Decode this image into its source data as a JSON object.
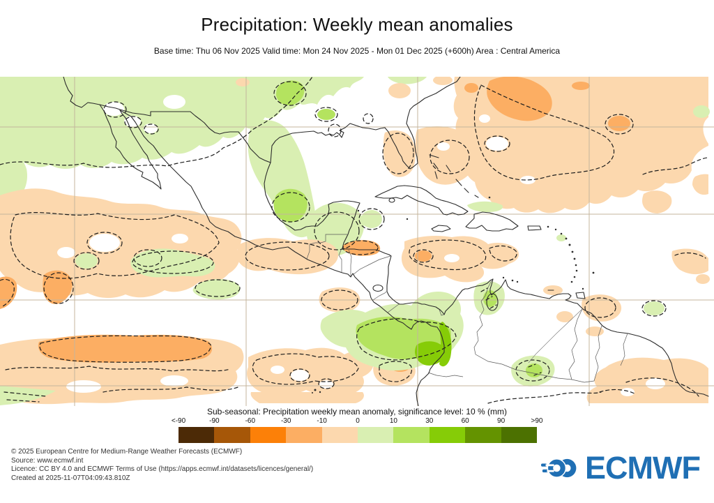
{
  "header": {
    "title": "Precipitation: Weekly mean anomalies",
    "subtitle": "Base time: Thu 06 Nov 2025 Valid time: Mon 24 Nov 2025 - Mon 01 Dec 2025 (+600h) Area : Central America"
  },
  "map": {
    "area": "Central America",
    "gridline_color": "#c4b69c",
    "coastline_color": "#2b2b2b",
    "shading_colors": {
      "anom_-30_-10": "#fcd8ae",
      "anom_-60_-30": "#fcae63",
      "anom_-90_-60": "#fc8008",
      "anom_10_30": "#d9efb2",
      "anom_30_60": "#b4e35f",
      "anom_60_90": "#86cc07"
    }
  },
  "legend": {
    "title": "Sub-seasonal: Precipitation weekly mean anomaly, significance level: 10 % (mm)",
    "ticks": [
      "<-90",
      "-90",
      "-60",
      "-30",
      "-10",
      "0",
      "10",
      "30",
      "60",
      "90",
      ">90"
    ],
    "colors": [
      "#4c2a06",
      "#a65708",
      "#fc8008",
      "#fcae63",
      "#fcd8ae",
      "#d9efb2",
      "#b4e35f",
      "#86cc07",
      "#649300",
      "#4c7101"
    ]
  },
  "footer": {
    "lines": [
      "© 2025 European Centre for Medium-Range Weather Forecasts (ECMWF)",
      "Source: www.ecmwf.int",
      "Licence: CC BY 4.0 and ECMWF Terms of Use (https://apps.ecmwf.int/datasets/licences/general/)",
      "Created at 2025-11-07T04:09:43.810Z"
    ]
  },
  "logo": {
    "text": "ECMWF",
    "color": "#1f6fb4"
  }
}
